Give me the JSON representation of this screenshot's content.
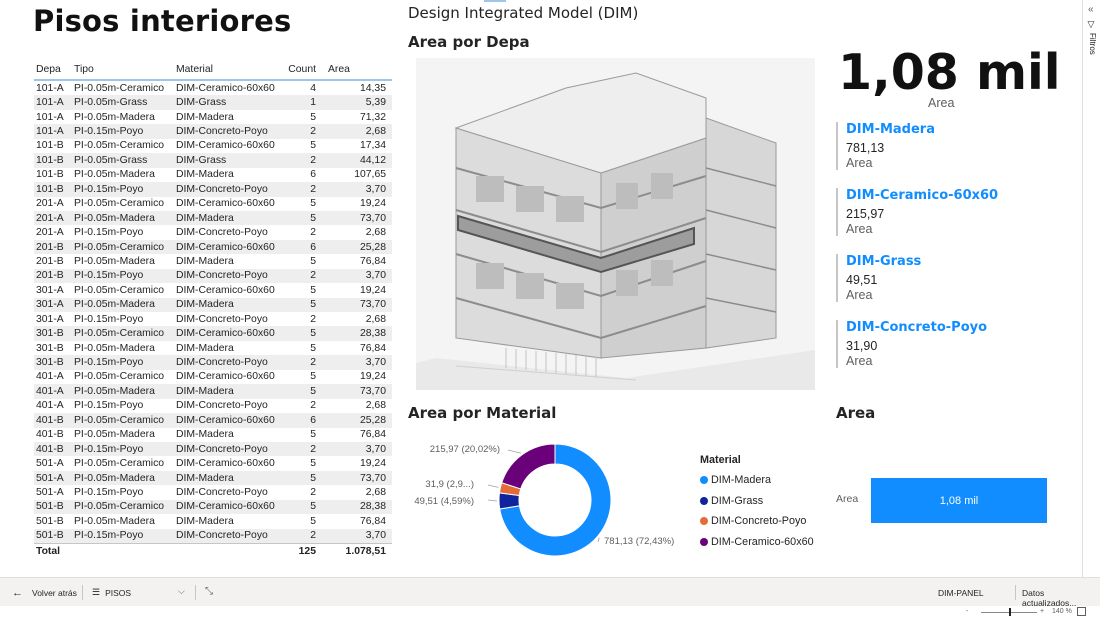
{
  "page": {
    "title": "Pisos interiores",
    "report_title": "Design Integrated Model (DIM)"
  },
  "table": {
    "headers": [
      "Depa",
      "Tipo",
      "Material",
      "Count",
      "Area"
    ],
    "rows": [
      [
        "101-A",
        "PI-0.05m-Ceramico",
        "DIM-Ceramico-60x60",
        "4",
        "14,35"
      ],
      [
        "101-A",
        "PI-0.05m-Grass",
        "DIM-Grass",
        "1",
        "5,39"
      ],
      [
        "101-A",
        "PI-0.05m-Madera",
        "DIM-Madera",
        "5",
        "71,32"
      ],
      [
        "101-A",
        "PI-0.15m-Poyo",
        "DIM-Concreto-Poyo",
        "2",
        "2,68"
      ],
      [
        "101-B",
        "PI-0.05m-Ceramico",
        "DIM-Ceramico-60x60",
        "5",
        "17,34"
      ],
      [
        "101-B",
        "PI-0.05m-Grass",
        "DIM-Grass",
        "2",
        "44,12"
      ],
      [
        "101-B",
        "PI-0.05m-Madera",
        "DIM-Madera",
        "6",
        "107,65"
      ],
      [
        "101-B",
        "PI-0.15m-Poyo",
        "DIM-Concreto-Poyo",
        "2",
        "3,70"
      ],
      [
        "201-A",
        "PI-0.05m-Ceramico",
        "DIM-Ceramico-60x60",
        "5",
        "19,24"
      ],
      [
        "201-A",
        "PI-0.05m-Madera",
        "DIM-Madera",
        "5",
        "73,70"
      ],
      [
        "201-A",
        "PI-0.15m-Poyo",
        "DIM-Concreto-Poyo",
        "2",
        "2,68"
      ],
      [
        "201-B",
        "PI-0.05m-Ceramico",
        "DIM-Ceramico-60x60",
        "6",
        "25,28"
      ],
      [
        "201-B",
        "PI-0.05m-Madera",
        "DIM-Madera",
        "5",
        "76,84"
      ],
      [
        "201-B",
        "PI-0.15m-Poyo",
        "DIM-Concreto-Poyo",
        "2",
        "3,70"
      ],
      [
        "301-A",
        "PI-0.05m-Ceramico",
        "DIM-Ceramico-60x60",
        "5",
        "19,24"
      ],
      [
        "301-A",
        "PI-0.05m-Madera",
        "DIM-Madera",
        "5",
        "73,70"
      ],
      [
        "301-A",
        "PI-0.15m-Poyo",
        "DIM-Concreto-Poyo",
        "2",
        "2,68"
      ],
      [
        "301-B",
        "PI-0.05m-Ceramico",
        "DIM-Ceramico-60x60",
        "5",
        "28,38"
      ],
      [
        "301-B",
        "PI-0.05m-Madera",
        "DIM-Madera",
        "5",
        "76,84"
      ],
      [
        "301-B",
        "PI-0.15m-Poyo",
        "DIM-Concreto-Poyo",
        "2",
        "3,70"
      ],
      [
        "401-A",
        "PI-0.05m-Ceramico",
        "DIM-Ceramico-60x60",
        "5",
        "19,24"
      ],
      [
        "401-A",
        "PI-0.05m-Madera",
        "DIM-Madera",
        "5",
        "73,70"
      ],
      [
        "401-A",
        "PI-0.15m-Poyo",
        "DIM-Concreto-Poyo",
        "2",
        "2,68"
      ],
      [
        "401-B",
        "PI-0.05m-Ceramico",
        "DIM-Ceramico-60x60",
        "6",
        "25,28"
      ],
      [
        "401-B",
        "PI-0.05m-Madera",
        "DIM-Madera",
        "5",
        "76,84"
      ],
      [
        "401-B",
        "PI-0.15m-Poyo",
        "DIM-Concreto-Poyo",
        "2",
        "3,70"
      ],
      [
        "501-A",
        "PI-0.05m-Ceramico",
        "DIM-Ceramico-60x60",
        "5",
        "19,24"
      ],
      [
        "501-A",
        "PI-0.05m-Madera",
        "DIM-Madera",
        "5",
        "73,70"
      ],
      [
        "501-A",
        "PI-0.15m-Poyo",
        "DIM-Concreto-Poyo",
        "2",
        "2,68"
      ],
      [
        "501-B",
        "PI-0.05m-Ceramico",
        "DIM-Ceramico-60x60",
        "5",
        "28,38"
      ],
      [
        "501-B",
        "PI-0.05m-Madera",
        "DIM-Madera",
        "5",
        "76,84"
      ],
      [
        "501-B",
        "PI-0.15m-Poyo",
        "DIM-Concreto-Poyo",
        "2",
        "3,70"
      ]
    ],
    "total": {
      "label": "Total",
      "count": "125",
      "area": "1.078,51"
    }
  },
  "building_section": {
    "title": "Area por Depa"
  },
  "kpi": {
    "value": "1,08 mil",
    "label": "Area"
  },
  "cards": [
    {
      "title": "DIM-Madera",
      "value": "781,13",
      "label": "Area"
    },
    {
      "title": "DIM-Ceramico-60x60",
      "value": "215,97",
      "label": "Area"
    },
    {
      "title": "DIM-Grass",
      "value": "49,51",
      "label": "Area"
    },
    {
      "title": "DIM-Concreto-Poyo",
      "value": "31,90",
      "label": "Area"
    }
  ],
  "chart_data": [
    {
      "type": "pie",
      "title": "Area por Material",
      "legend_title": "Material",
      "legend_position": "right",
      "series": [
        {
          "name": "DIM-Madera",
          "value": 781.13,
          "label": "781,13 (72,43%)",
          "color": "#118dff"
        },
        {
          "name": "DIM-Grass",
          "value": 49.51,
          "label": "49,51 (4,59%)",
          "color": "#12239e"
        },
        {
          "name": "DIM-Concreto-Poyo",
          "value": 31.9,
          "label": "31,9 (2,9...)",
          "color": "#e66c37"
        },
        {
          "name": "DIM-Ceramico-60x60",
          "value": 215.97,
          "label": "215,97 (20,02%)",
          "color": "#6b007b"
        }
      ]
    },
    {
      "type": "bar",
      "title": "Area",
      "categories": [
        "Area"
      ],
      "values": [
        1078.51
      ],
      "value_label": "1,08 mil",
      "color": "#118dff"
    }
  ],
  "bottombar": {
    "back_label": "Volver atrás",
    "page_label": "PISOS",
    "report_name": "DIM-PANEL",
    "updated_label": "Datos actualizados...",
    "zoom_minus": "-",
    "zoom_plus": "+",
    "zoom_level": "140 %"
  },
  "filters_pane": {
    "label": "Filtros"
  },
  "icons": {
    "collapse": "chevron-double-left-icon",
    "filter": "filter-icon",
    "back": "arrow-left-icon",
    "pages": "hamburger-icon",
    "fit": "collapse-arrows-icon"
  }
}
